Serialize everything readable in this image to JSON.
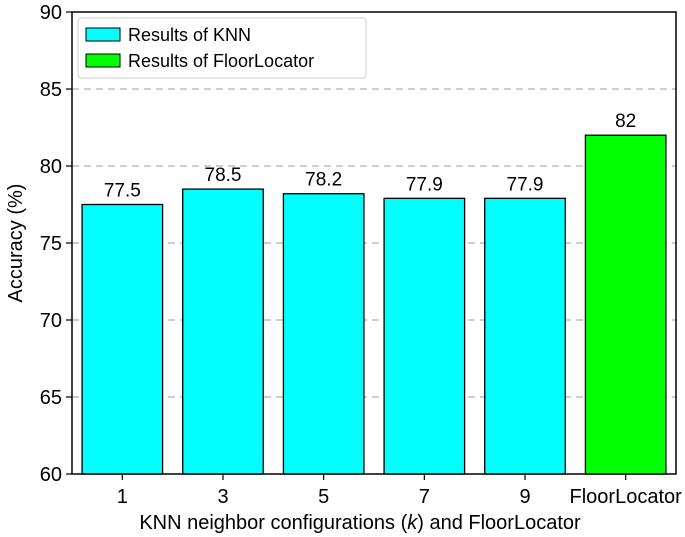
{
  "chart_data": {
    "type": "bar",
    "categories": [
      "1",
      "3",
      "5",
      "7",
      "9",
      "FloorLocator"
    ],
    "values": [
      77.5,
      78.5,
      78.2,
      77.9,
      77.9,
      82
    ],
    "data_labels": [
      "77.5",
      "78.5",
      "78.2",
      "77.9",
      "77.9",
      "82"
    ],
    "series_index": [
      0,
      0,
      0,
      0,
      0,
      1
    ],
    "series": [
      {
        "name": "Results of KNN",
        "color": "#00FFFF"
      },
      {
        "name": "Results of FloorLocator",
        "color": "#00FF00"
      }
    ],
    "xlabel_parts": [
      "KNN neighbor configurations (",
      "k",
      ") and FloorLocator"
    ],
    "ylabel": "Accuracy (%)",
    "ylim": [
      60,
      90
    ],
    "yticks": [
      60,
      65,
      70,
      75,
      80,
      85,
      90
    ],
    "grid": "horizontal dashed",
    "legend_position": "top-left"
  }
}
